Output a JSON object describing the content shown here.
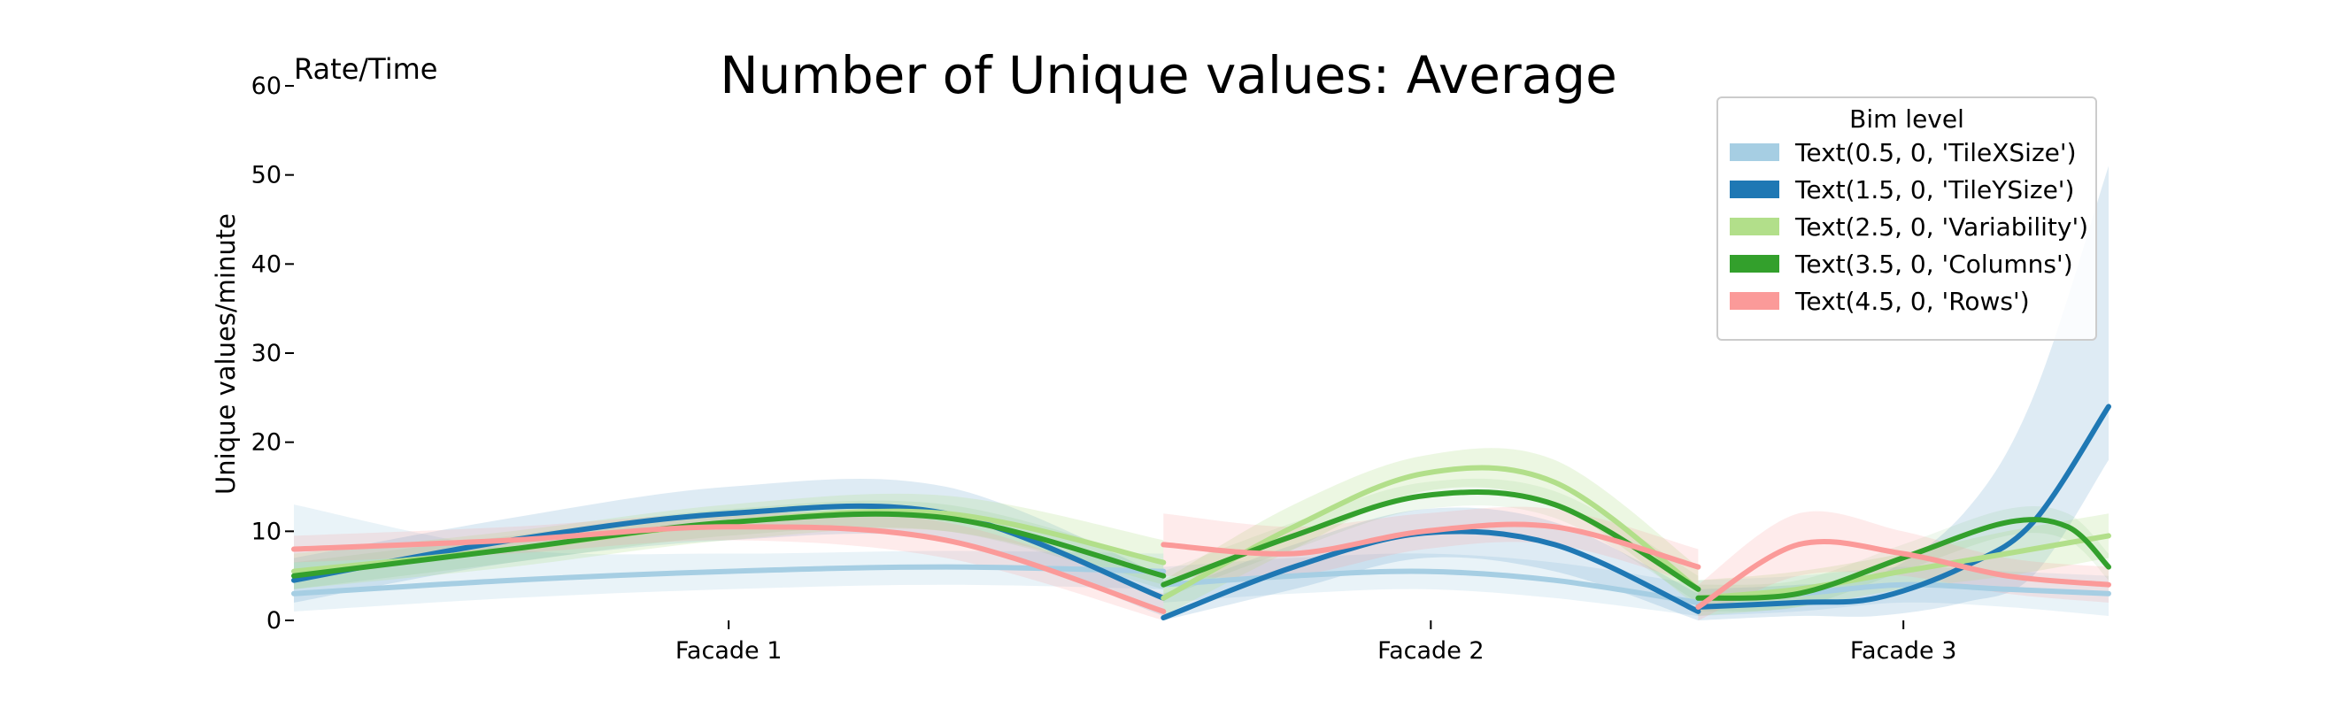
{
  "chart_data": {
    "type": "line",
    "title": "Number of Unique values: Average",
    "corner_label": "Rate/Time",
    "xlabel": "",
    "ylabel": "Unique values/minute",
    "ylim": [
      0,
      60
    ],
    "yticks": [
      0,
      10,
      20,
      30,
      40,
      50,
      60
    ],
    "facets": [
      "Facade 1",
      "Facade 2",
      "Facade 3"
    ],
    "facet_ranges": [
      [
        0,
        1
      ],
      [
        1,
        1.615
      ],
      [
        1.615,
        2.087
      ]
    ],
    "legend": {
      "title": "Bim level",
      "position": "top-right"
    },
    "grid": false,
    "series": [
      {
        "name": "Text(0.5, 0, 'TileXSize')",
        "color": "#a6cee3",
        "band_color": "#a6cee3",
        "band_opacity": 0.25,
        "segments": [
          {
            "x": [
              0.0,
              0.25,
              0.5,
              0.75,
              1.0
            ],
            "y": [
              3.0,
              4.5,
              5.5,
              6.0,
              5.5
            ],
            "lo": [
              1.0,
              2.5,
              3.5,
              4.0,
              3.5
            ],
            "hi": [
              13.0,
              8.0,
              7.5,
              7.8,
              7.5
            ]
          },
          {
            "x": [
              1.0,
              1.15,
              1.3,
              1.45,
              1.615
            ],
            "y": [
              4.0,
              5.0,
              5.5,
              4.5,
              2.0
            ],
            "lo": [
              2.0,
              3.0,
              3.5,
              2.5,
              0.5
            ],
            "hi": [
              6.0,
              7.0,
              7.5,
              6.5,
              4.0
            ]
          },
          {
            "x": [
              1.615,
              1.73,
              1.85,
              1.97,
              2.087
            ],
            "y": [
              2.5,
              3.0,
              4.0,
              3.5,
              3.0
            ],
            "lo": [
              0.5,
              1.0,
              2.0,
              1.5,
              0.5
            ],
            "hi": [
              4.5,
              5.0,
              6.0,
              5.5,
              5.0
            ]
          }
        ]
      },
      {
        "name": "Text(1.5, 0, 'TileYSize')",
        "color": "#1f78b4",
        "band_color": "#1f78b4",
        "band_opacity": 0.15,
        "segments": [
          {
            "x": [
              0.0,
              0.25,
              0.5,
              0.75,
              1.0
            ],
            "y": [
              4.5,
              9.0,
              12.0,
              12.0,
              2.5
            ],
            "lo": [
              2.0,
              6.5,
              9.0,
              9.0,
              0.5
            ],
            "hi": [
              7.0,
              11.5,
              15.0,
              15.0,
              5.0
            ]
          },
          {
            "x": [
              1.0,
              1.15,
              1.3,
              1.45,
              1.615
            ],
            "y": [
              0.3,
              6.0,
              9.8,
              8.5,
              1.0
            ],
            "lo": [
              0.0,
              3.5,
              7.0,
              5.5,
              0.0
            ],
            "hi": [
              3.0,
              8.5,
              12.5,
              11.0,
              3.0
            ]
          },
          {
            "x": [
              1.615,
              1.73,
              1.82,
              1.92,
              2.0,
              2.087
            ],
            "y": [
              1.5,
              2.0,
              2.5,
              6.0,
              11.0,
              24.0
            ],
            "lo": [
              0.0,
              0.5,
              0.5,
              2.0,
              5.0,
              18.0
            ],
            "hi": [
              3.5,
              4.0,
              5.0,
              12.0,
              25.0,
              51.0
            ]
          }
        ]
      },
      {
        "name": "Text(2.5, 0, 'Variability')",
        "color": "#b2df8a",
        "band_color": "#b2df8a",
        "band_opacity": 0.25,
        "segments": [
          {
            "x": [
              0.0,
              0.25,
              0.5,
              0.75,
              1.0
            ],
            "y": [
              5.5,
              8.0,
              11.0,
              12.0,
              6.5
            ],
            "lo": [
              3.5,
              6.0,
              9.0,
              10.0,
              4.0
            ],
            "hi": [
              7.5,
              10.0,
              13.0,
              14.0,
              9.0
            ]
          },
          {
            "x": [
              1.0,
              1.15,
              1.3,
              1.45,
              1.615
            ],
            "y": [
              2.5,
              10.5,
              16.5,
              15.5,
              3.5
            ],
            "lo": [
              0.5,
              8.0,
              14.5,
              13.0,
              1.5
            ],
            "hi": [
              4.5,
              13.0,
              18.5,
              18.0,
              6.0
            ]
          },
          {
            "x": [
              1.615,
              1.73,
              1.85,
              1.97,
              2.087
            ],
            "y": [
              2.5,
              3.5,
              5.5,
              7.5,
              9.5
            ],
            "lo": [
              0.5,
              1.5,
              3.5,
              5.0,
              7.0
            ],
            "hi": [
              4.5,
              5.5,
              7.5,
              10.0,
              12.0
            ]
          }
        ]
      },
      {
        "name": "Text(3.5, 0, 'Columns')",
        "color": "#33a02c",
        "band_color": "#33a02c",
        "band_opacity": 0.08,
        "segments": [
          {
            "x": [
              0.0,
              0.25,
              0.5,
              0.75,
              1.0
            ],
            "y": [
              5.0,
              8.0,
              11.0,
              11.5,
              5.0
            ],
            "lo": [
              3.5,
              6.5,
              9.5,
              10.0,
              3.5
            ],
            "hi": [
              6.5,
              9.5,
              12.5,
              13.0,
              6.5
            ]
          },
          {
            "x": [
              1.0,
              1.15,
              1.3,
              1.45,
              1.615
            ],
            "y": [
              4.0,
              9.5,
              14.0,
              13.0,
              3.5
            ],
            "lo": [
              2.5,
              8.0,
              12.5,
              11.5,
              2.0
            ],
            "hi": [
              5.5,
              11.0,
              15.5,
              14.5,
              5.0
            ]
          },
          {
            "x": [
              1.615,
              1.73,
              1.85,
              1.97,
              2.04,
              2.087
            ],
            "y": [
              2.5,
              3.0,
              7.0,
              11.0,
              10.5,
              6.0
            ],
            "lo": [
              1.0,
              1.5,
              5.5,
              9.5,
              9.0,
              4.5
            ],
            "hi": [
              4.0,
              4.5,
              8.5,
              12.5,
              12.0,
              7.5
            ]
          }
        ]
      },
      {
        "name": "Text(4.5, 0, 'Rows')",
        "color": "#fb9a99",
        "band_color": "#fb9a99",
        "band_opacity": 0.2,
        "segments": [
          {
            "x": [
              0.0,
              0.25,
              0.5,
              0.75,
              1.0
            ],
            "y": [
              8.0,
              9.0,
              10.5,
              9.0,
              1.0
            ],
            "lo": [
              6.5,
              7.5,
              9.0,
              7.0,
              0.0
            ],
            "hi": [
              9.5,
              10.5,
              12.0,
              11.0,
              3.0
            ]
          },
          {
            "x": [
              1.0,
              1.15,
              1.3,
              1.45,
              1.615
            ],
            "y": [
              8.5,
              7.5,
              10.0,
              10.5,
              6.0
            ],
            "lo": [
              5.0,
              5.0,
              8.0,
              8.5,
              4.0
            ],
            "hi": [
              12.0,
              10.5,
              12.0,
              12.5,
              8.0
            ]
          },
          {
            "x": [
              1.615,
              1.73,
              1.85,
              1.97,
              2.087
            ],
            "y": [
              1.5,
              8.5,
              7.5,
              5.0,
              4.0
            ],
            "lo": [
              0.0,
              5.0,
              5.0,
              3.0,
              2.0
            ],
            "hi": [
              4.0,
              12.0,
              10.0,
              7.0,
              6.0
            ]
          }
        ]
      }
    ]
  }
}
